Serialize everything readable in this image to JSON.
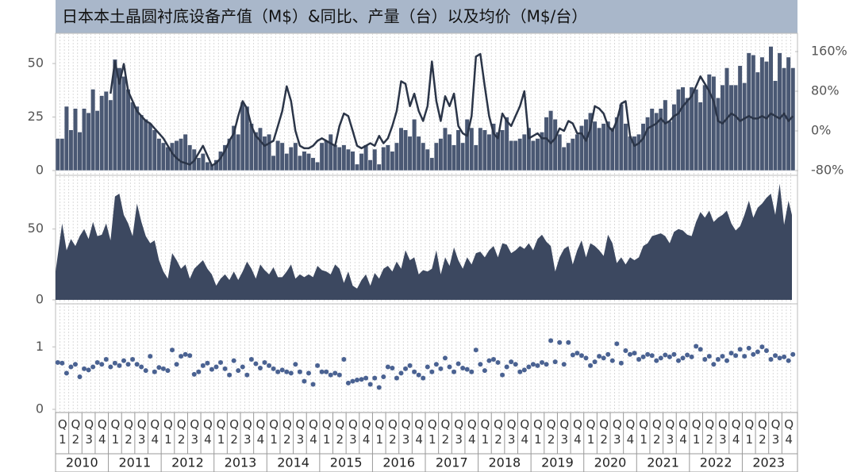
{
  "chart_data": [
    {
      "type": "bar",
      "title": "日本本土晶圆衬底设备产值（M$）&同比、产量（台）以及均价（M$/台）",
      "ylim": [
        0,
        63
      ],
      "yticks": [
        0,
        25,
        50
      ],
      "y2lim": [
        -80,
        192
      ],
      "y2ticks": [
        {
          "value": -80,
          "label": "-80%"
        },
        {
          "value": 0,
          "label": "0%"
        },
        {
          "value": 80,
          "label": "80%"
        },
        {
          "value": 160,
          "label": "160%"
        }
      ],
      "series": [
        {
          "type": "bar",
          "color": "#4a5873",
          "values": [
            15,
            15,
            30,
            19,
            29,
            18,
            29,
            27,
            38,
            28,
            35,
            37,
            33,
            52,
            48,
            44,
            38,
            32,
            30,
            26,
            24,
            22,
            19,
            15,
            13,
            11,
            13,
            14,
            15,
            17,
            12,
            10,
            6,
            8,
            4,
            3,
            5,
            9,
            12,
            15,
            21,
            17,
            32,
            30,
            22,
            18,
            20,
            16,
            17,
            7,
            14,
            13,
            8,
            11,
            13,
            7,
            9,
            8,
            6,
            4,
            13,
            14,
            17,
            12,
            11,
            12,
            10,
            9,
            3,
            8,
            12,
            5,
            10,
            3,
            11,
            12,
            9,
            13,
            20,
            19,
            16,
            24,
            16,
            13,
            10,
            6,
            13,
            15,
            20,
            17,
            12,
            19,
            13,
            24,
            20,
            12,
            20,
            19,
            17,
            22,
            18,
            19,
            25,
            14,
            14,
            15,
            17,
            20,
            14,
            15,
            18,
            25,
            28,
            24,
            17,
            11,
            13,
            15,
            17,
            21,
            24,
            27,
            23,
            20,
            22,
            23,
            20,
            25,
            31,
            22,
            16,
            16,
            17,
            22,
            25,
            29,
            27,
            29,
            33,
            23,
            31,
            38,
            39,
            34,
            39,
            38,
            32,
            40,
            45,
            44,
            34,
            40,
            48,
            40,
            40,
            49,
            41,
            55,
            54,
            46,
            53,
            51,
            58,
            42,
            55,
            48,
            53,
            48
          ]
        },
        {
          "type": "line",
          "axis": "y2",
          "color": "#2b3548",
          "values": [
            null,
            null,
            null,
            null,
            null,
            null,
            null,
            null,
            null,
            null,
            null,
            null,
            75,
            140,
            95,
            135,
            80,
            60,
            40,
            30,
            20,
            15,
            5,
            -5,
            -15,
            -30,
            -45,
            -55,
            -62,
            -65,
            -68,
            -60,
            -45,
            -30,
            -50,
            -70,
            -65,
            -55,
            -40,
            -20,
            -5,
            30,
            60,
            45,
            10,
            -10,
            -20,
            -30,
            -25,
            -20,
            10,
            40,
            90,
            60,
            0,
            -30,
            -35,
            -35,
            -30,
            -20,
            -15,
            -20,
            -25,
            -30,
            10,
            35,
            30,
            0,
            -30,
            -35,
            -30,
            -25,
            -30,
            -10,
            -25,
            -15,
            10,
            40,
            100,
            95,
            50,
            75,
            40,
            20,
            50,
            140,
            60,
            20,
            70,
            50,
            75,
            10,
            -5,
            -10,
            30,
            150,
            155,
            90,
            30,
            -5,
            -15,
            35,
            20,
            10,
            30,
            50,
            80,
            -15,
            -10,
            -5,
            -15,
            -15,
            -25,
            -15,
            5,
            0,
            20,
            15,
            -5,
            -5,
            -20,
            5,
            50,
            45,
            35,
            10,
            0,
            20,
            55,
            60,
            -10,
            -30,
            -25,
            -15,
            5,
            10,
            15,
            25,
            15,
            20,
            30,
            35,
            50,
            60,
            70,
            90,
            110,
            95,
            80,
            60,
            20,
            15,
            25,
            35,
            30,
            20,
            25,
            30,
            25,
            25,
            30,
            25,
            35,
            30,
            25,
            35,
            20,
            30
          ]
        }
      ]
    },
    {
      "type": "area",
      "color": "#3c4860",
      "ylim": [
        0,
        84
      ],
      "yticks": [
        0,
        50
      ],
      "values": [
        20,
        54,
        35,
        43,
        38,
        45,
        50,
        43,
        55,
        45,
        46,
        54,
        42,
        73,
        75,
        60,
        54,
        45,
        68,
        55,
        45,
        40,
        42,
        28,
        20,
        15,
        33,
        28,
        22,
        25,
        15,
        22,
        25,
        28,
        22,
        18,
        10,
        15,
        18,
        14,
        20,
        14,
        20,
        27,
        22,
        15,
        25,
        21,
        18,
        23,
        16,
        16,
        20,
        25,
        15,
        18,
        16,
        18,
        16,
        24,
        21,
        20,
        18,
        25,
        22,
        12,
        20,
        10,
        8,
        14,
        18,
        10,
        19,
        15,
        22,
        24,
        20,
        27,
        22,
        35,
        28,
        30,
        18,
        21,
        20,
        22,
        35,
        18,
        30,
        24,
        37,
        28,
        22,
        30,
        25,
        33,
        34,
        30,
        35,
        38,
        30,
        40,
        39,
        33,
        35,
        38,
        36,
        40,
        35,
        43,
        46,
        41,
        38,
        20,
        30,
        36,
        38,
        25,
        35,
        42,
        30,
        40,
        38,
        35,
        31,
        46,
        40,
        26,
        30,
        25,
        30,
        28,
        30,
        38,
        40,
        45,
        46,
        47,
        45,
        40,
        48,
        50,
        49,
        46,
        45,
        55,
        62,
        58,
        63,
        55,
        58,
        60,
        63,
        54,
        49,
        52,
        60,
        70,
        58,
        65,
        68,
        72,
        75,
        60,
        82,
        53,
        70,
        60
      ]
    },
    {
      "type": "scatter",
      "color": "#4a6292",
      "ylim": [
        0,
        1.6
      ],
      "yticks": [
        0,
        1
      ],
      "quarters": [
        "Q1",
        "Q2",
        "Q3",
        "Q4"
      ],
      "years": [
        "2010",
        "2011",
        "2012",
        "2013",
        "2014",
        "2015",
        "2016",
        "2017",
        "2018",
        "2019",
        "2020",
        "2021",
        "2022",
        "2023"
      ],
      "values": [
        0.75,
        0.74,
        0.58,
        0.68,
        0.72,
        0.52,
        0.65,
        0.63,
        0.68,
        0.75,
        0.72,
        0.8,
        0.68,
        0.74,
        0.7,
        0.78,
        0.72,
        0.8,
        0.72,
        0.68,
        0.62,
        0.85,
        0.6,
        0.67,
        0.65,
        0.62,
        0.95,
        0.72,
        0.85,
        0.88,
        0.86,
        0.56,
        0.6,
        0.7,
        0.74,
        0.64,
        0.68,
        0.75,
        0.65,
        0.55,
        0.78,
        0.62,
        0.68,
        0.55,
        0.8,
        0.73,
        0.66,
        0.75,
        0.7,
        0.65,
        0.6,
        0.63,
        0.6,
        0.58,
        0.72,
        0.6,
        0.45,
        0.58,
        0.4,
        0.7,
        0.6,
        0.6,
        0.55,
        0.58,
        0.55,
        0.8,
        0.42,
        0.45,
        0.47,
        0.48,
        0.5,
        0.4,
        0.5,
        0.35,
        0.52,
        0.68,
        0.66,
        0.5,
        0.58,
        0.65,
        0.7,
        0.6,
        0.55,
        0.5,
        0.68,
        0.6,
        0.72,
        0.65,
        0.82,
        0.68,
        0.6,
        0.73,
        0.66,
        0.64,
        0.6,
        0.95,
        0.72,
        0.62,
        0.78,
        0.8,
        0.75,
        0.55,
        0.68,
        0.76,
        0.72,
        0.6,
        0.63,
        0.68,
        0.72,
        0.7,
        0.75,
        0.72,
        1.1,
        0.76,
        1.07,
        0.72,
        1.07,
        0.87,
        0.9,
        0.86,
        0.82,
        0.7,
        0.76,
        0.85,
        0.82,
        0.88,
        0.78,
        1.05,
        0.74,
        0.94,
        0.88,
        0.9,
        0.8,
        0.84,
        0.88,
        0.86,
        0.78,
        0.82,
        0.87,
        0.84,
        0.88,
        0.78,
        0.82,
        0.87,
        0.84,
        1.01,
        0.96,
        0.8,
        0.85,
        0.72,
        0.8,
        0.85,
        0.78,
        0.9,
        0.86,
        0.96,
        0.85,
        0.98,
        0.88,
        0.92,
        1.0,
        0.94,
        0.8,
        0.86,
        0.82,
        0.84,
        0.78,
        0.88
      ]
    }
  ]
}
